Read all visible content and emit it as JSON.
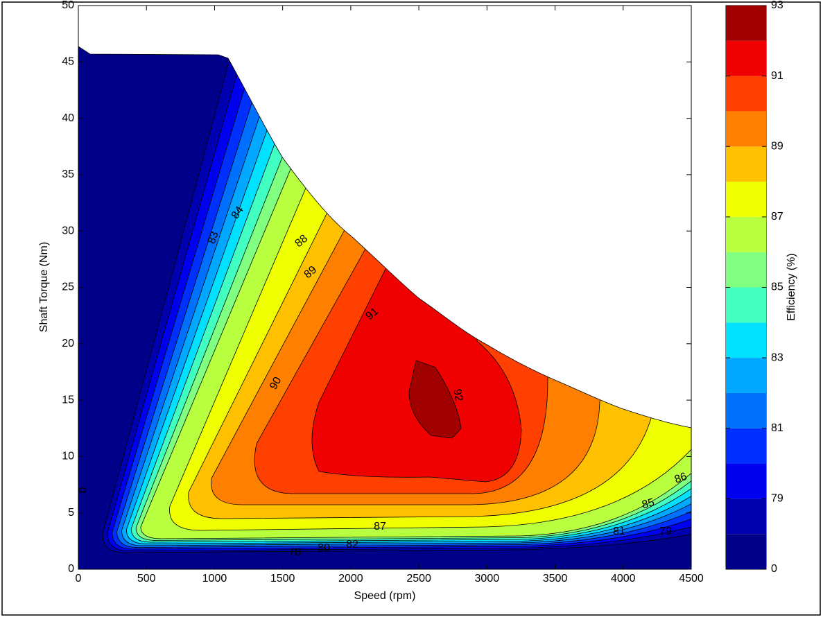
{
  "chart_data": {
    "type": "contour",
    "xlabel": "Speed  (rpm)",
    "ylabel": "Shaft Torque  (Nm)",
    "colorbar_label": "Efficiency (%)",
    "xlim": [
      0,
      4500
    ],
    "ylim": [
      0,
      50
    ],
    "xticks": [
      0,
      500,
      1000,
      1500,
      2000,
      2500,
      3000,
      3500,
      4000,
      4500
    ],
    "yticks": [
      0,
      5,
      10,
      15,
      20,
      25,
      30,
      35,
      40,
      45,
      50
    ],
    "levels": [
      0,
      78,
      79,
      80,
      81,
      82,
      83,
      84,
      85,
      86,
      87,
      88,
      89,
      90,
      91,
      92,
      93
    ],
    "colors": [
      "#000088",
      "#0000b0",
      "#0000f0",
      "#0030ff",
      "#0070ff",
      "#00a8ff",
      "#00e0ff",
      "#40ffc0",
      "#80ff80",
      "#b8ff40",
      "#f0ff00",
      "#ffc000",
      "#ff8000",
      "#ff4000",
      "#f00000",
      "#a00000"
    ],
    "colorbar_ticks": [
      0,
      79,
      81,
      83,
      85,
      87,
      89,
      91,
      93
    ],
    "contour_labels": [
      83,
      84,
      88,
      89,
      91,
      90,
      92,
      86,
      85,
      87,
      81,
      79,
      78,
      80,
      82,
      0
    ]
  }
}
